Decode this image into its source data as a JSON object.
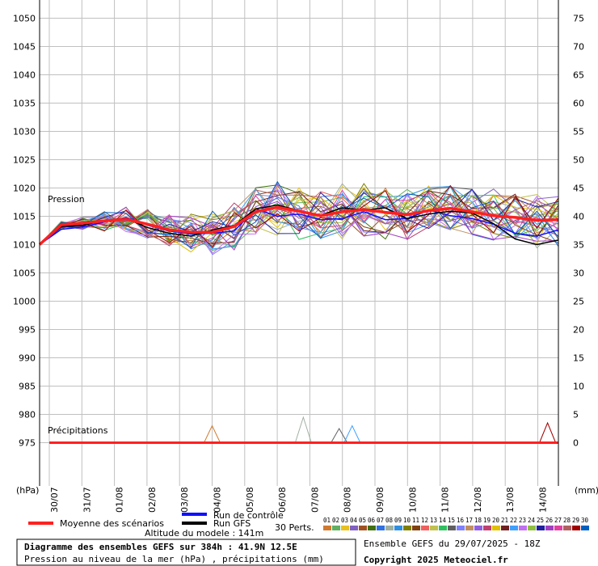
{
  "chart_data": {
    "type": "line",
    "pressure_axis": {
      "label": "(hPa)",
      "min": 970,
      "max": 1050,
      "ticks": [
        975,
        980,
        985,
        990,
        995,
        1000,
        1005,
        1010,
        1015,
        1020,
        1025,
        1030,
        1035,
        1040,
        1045,
        1050
      ]
    },
    "precip_axis": {
      "label": "(mm)",
      "min": -5,
      "max": 75,
      "ticks": [
        0,
        5,
        10,
        15,
        20,
        25,
        30,
        35,
        40,
        45,
        50,
        55,
        60,
        65,
        70,
        75
      ]
    },
    "x_dates": [
      "30/07",
      "31/07",
      "01/08",
      "02/08",
      "03/08",
      "04/08",
      "05/08",
      "06/08",
      "07/08",
      "08/08",
      "09/08",
      "10/08",
      "11/08",
      "12/08",
      "13/08",
      "14/08"
    ],
    "pressure_title": "Pression",
    "precip_title": "Précipitations",
    "pressure_mean": [
      1010,
      1013.5,
      1013.8,
      1014.2,
      1014.5,
      1013.6,
      1012.6,
      1012.2,
      1012.2,
      1013.2,
      1015.8,
      1016.6,
      1015.9,
      1015.1,
      1015.8,
      1016.2,
      1015.7,
      1015.3,
      1016.0,
      1016.4,
      1015.8,
      1015.1,
      1014.8,
      1014.3,
      1014.4
    ],
    "pressure_control": [
      1010,
      1012.7,
      1013.1,
      1014.0,
      1014.8,
      1013.4,
      1012.4,
      1011.9,
      1012.0,
      1012.4,
      1016.3,
      1015.0,
      1015.4,
      1014.4,
      1014.6,
      1015.8,
      1014.4,
      1014.6,
      1016.1,
      1015.1,
      1014.6,
      1013.6,
      1012.0,
      1011.5,
      1012.6
    ],
    "pressure_gfs": [
      1010,
      1013.2,
      1013.4,
      1014.3,
      1014.6,
      1013.0,
      1012.0,
      1011.5,
      1012.6,
      1013.4,
      1016.3,
      1017.0,
      1016.0,
      1015.2,
      1016.5,
      1016.1,
      1016.5,
      1014.6,
      1015.4,
      1015.9,
      1015.6,
      1013.7,
      1011.0,
      1010.0,
      1010.8
    ],
    "precip_peaks": [
      {
        "date_index": 5.0,
        "mm": 3.0
      },
      {
        "date_index": 7.8,
        "mm": 4.5
      },
      {
        "date_index": 8.9,
        "mm": 2.5
      },
      {
        "date_index": 9.3,
        "mm": 3.0
      },
      {
        "date_index": 15.3,
        "mm": 3.5
      }
    ],
    "legend": {
      "mean": "Moyenne des scénarios",
      "control": "Run de contrôle",
      "gfs": "Run GFS",
      "perts": "30 Perts.",
      "pert_labels": [
        "01",
        "02",
        "03",
        "04",
        "05",
        "06",
        "07",
        "08",
        "09",
        "10",
        "11",
        "12",
        "13",
        "14",
        "15",
        "16",
        "17",
        "18",
        "19",
        "20",
        "21",
        "22",
        "23",
        "24",
        "25",
        "26",
        "27",
        "28",
        "29",
        "30"
      ],
      "pert_colors": [
        "#d07a30",
        "#60b060",
        "#e8c020",
        "#8060c0",
        "#a05020",
        "#407010",
        "#3070e0",
        "#a0b0a0",
        "#3090e0",
        "#808000",
        "#804010",
        "#f06060",
        "#c0c050",
        "#30c060",
        "#606060",
        "#8080ff",
        "#c09060",
        "#9060e0",
        "#c04070",
        "#e0c000",
        "#702020",
        "#40a0ff",
        "#c070f0",
        "#90c040",
        "#2020a0",
        "#a040c0",
        "#e040a0",
        "#b06060",
        "#a00000",
        "#0060c0"
      ]
    },
    "altitude": "Altitude du modele : 141m",
    "diagram_title": "Diagramme des ensembles GEFS sur 384h : 41.9N 12.5E",
    "diagram_subtitle": "Pression au niveau de la mer (hPa) , précipitations (mm)",
    "run_info": "Ensemble GEFS du 29/07/2025 - 18Z",
    "copyright": "Copyright 2025 Meteociel.fr"
  },
  "colors": {
    "mean": "#ff2020",
    "control": "#1010ff",
    "gfs": "#000000",
    "grid": "#c0c0c0"
  }
}
